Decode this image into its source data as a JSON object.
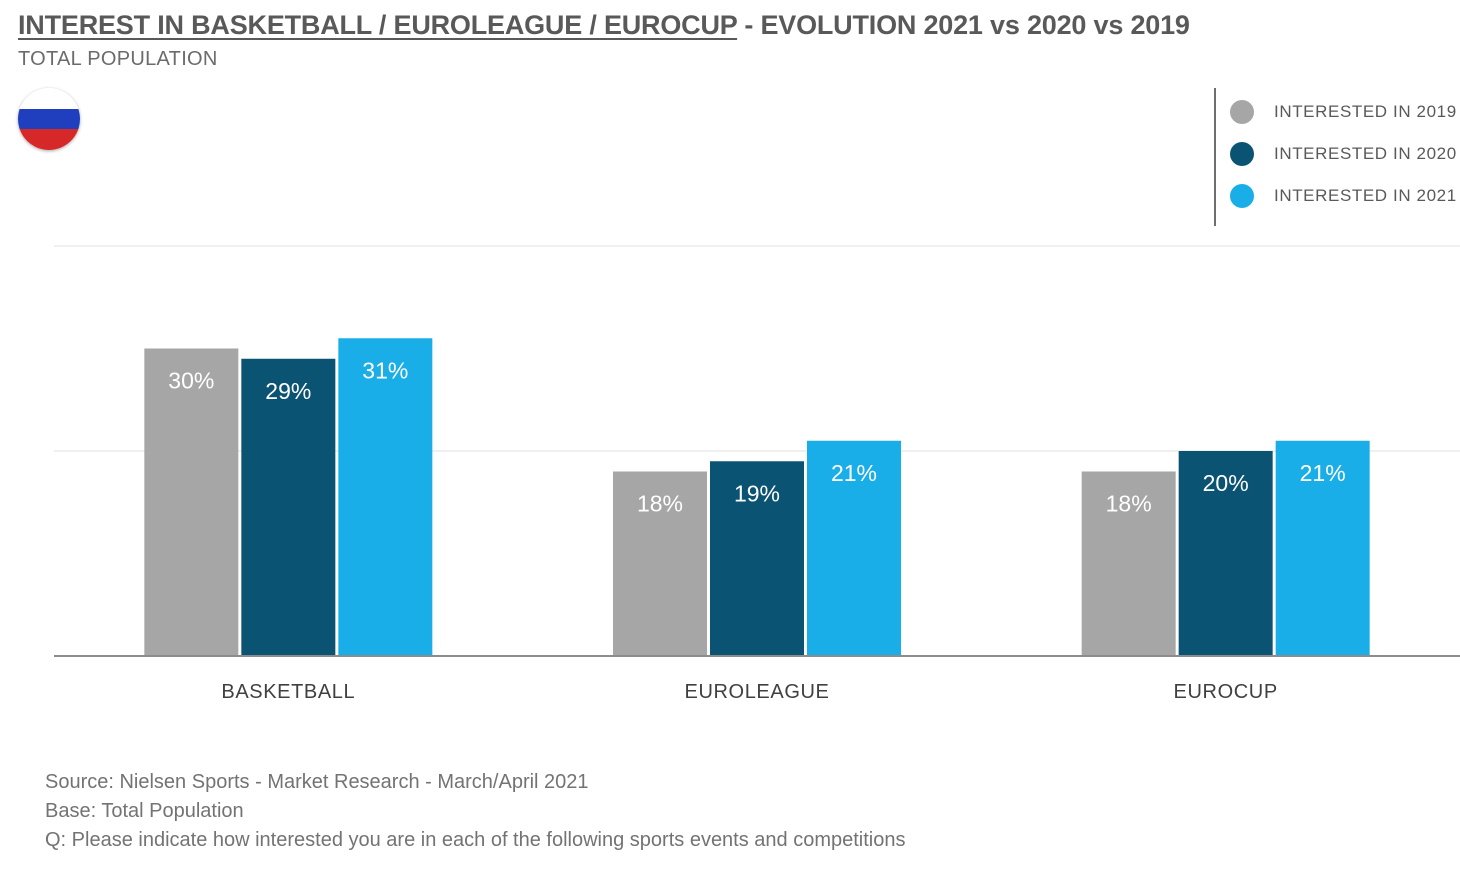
{
  "header": {
    "title_main": "INTEREST IN BASKETBALL / EUROLEAGUE / EUROCUP",
    "title_rest": " - EVOLUTION 2021 vs 2020 vs 2019",
    "subtitle": "TOTAL POPULATION"
  },
  "flag": {
    "icon": "russia-flag-icon",
    "colors": [
      "#ffffff",
      "#1f3fbf",
      "#d62828"
    ]
  },
  "chart_data": {
    "type": "bar",
    "categories": [
      "BASKETBALL",
      "EUROLEAGUE",
      "EUROCUP"
    ],
    "series": [
      {
        "name": "INTERESTED IN 2019",
        "values": [
          30,
          18,
          18
        ],
        "labels": [
          "30%",
          "18%",
          "18%"
        ],
        "color": "#a6a6a6"
      },
      {
        "name": "INTERESTED IN 2020",
        "values": [
          29,
          19,
          20
        ],
        "labels": [
          "29%",
          "19%",
          "20%"
        ],
        "color": "#0b5372"
      },
      {
        "name": "INTERESTED IN 2021",
        "values": [
          31,
          21,
          21
        ],
        "labels": [
          "31%",
          "21%",
          "21%"
        ],
        "color": "#1aaee8"
      }
    ],
    "ylim": [
      0,
      40
    ],
    "grid": true,
    "legend_position": "top-right"
  },
  "footer": {
    "source": "Source: Nielsen Sports - Market Research - March/April 2021",
    "base": "Base: Total Population",
    "question": "Q: Please indicate how interested you are in each of the following sports events and competitions"
  }
}
